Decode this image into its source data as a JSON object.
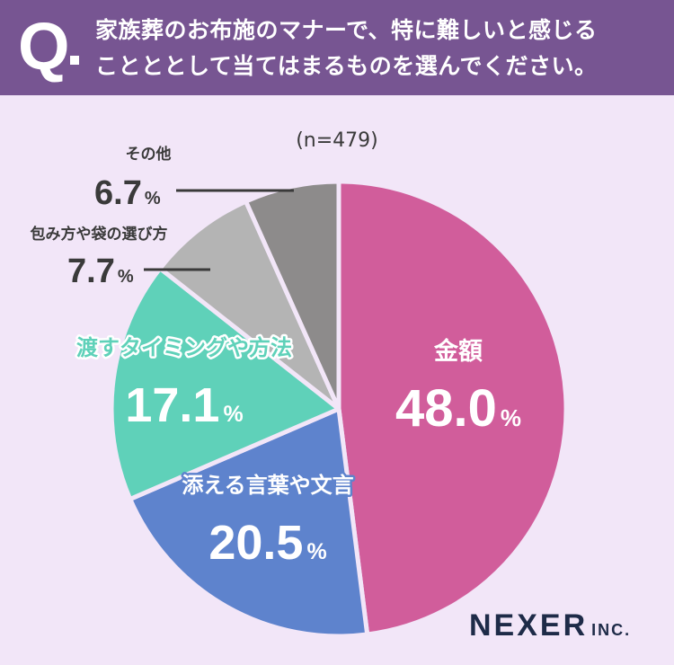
{
  "question": {
    "mark": "Q",
    "line1": "家族葬のお布施のマナーで、特に難しいと感じる",
    "line2": "ことととして当てはまるものを選んでください。"
  },
  "chart_data": {
    "type": "pie",
    "sample_size": "(n=479)",
    "unit": "%",
    "slices": [
      {
        "label": "金額",
        "value": 48.0,
        "display": "48.0",
        "color": "#d15d9b"
      },
      {
        "label": "添える言葉や文言",
        "value": 20.5,
        "display": "20.5",
        "color": "#5e83cd"
      },
      {
        "label": "渡すタイミングや方法",
        "value": 17.1,
        "display": "17.1",
        "color": "#5fd1b9"
      },
      {
        "label": "包み方や袋の選び方",
        "value": 7.7,
        "display": "7.7",
        "color": "#b4b4b4"
      },
      {
        "label": "その他",
        "value": 6.7,
        "display": "6.7",
        "color": "#8d8b8b"
      }
    ]
  },
  "logo": {
    "main": "NEXER",
    "sub": "INC."
  }
}
